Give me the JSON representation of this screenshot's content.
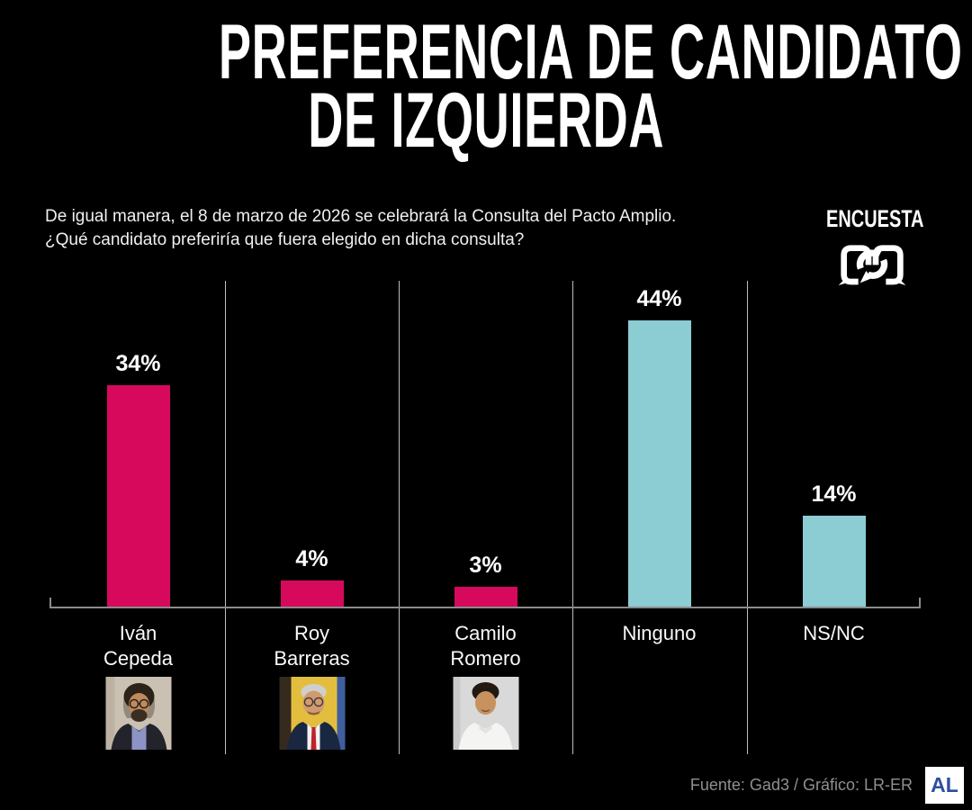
{
  "page": {
    "background": "#000000"
  },
  "header": {
    "title_line1": "PREFERENCIA DE CANDIDATO",
    "title_line2": "DE IZQUIERDA",
    "subtitle_line1": "De igual manera, el 8 de marzo de 2026 se celebrará la Consulta del Pacto Amplio.",
    "subtitle_line2": "¿Qué candidato preferiría que fuera elegido en dicha consulta?",
    "encuesta_label": "ENCUESTA",
    "brand_logo": "rcn-logo"
  },
  "chart_data": {
    "type": "bar",
    "title": "Preferencia de candidato de izquierda",
    "categories": [
      "Iván Cepeda",
      "Roy Barreras",
      "Camilo Romero",
      "Ninguno",
      "NS/NC"
    ],
    "values": [
      34,
      4,
      3,
      44,
      14
    ],
    "unit": "%",
    "ylim": [
      0,
      48
    ],
    "legend": "none",
    "grid": "vertical-column-separators",
    "colors": {
      "candidate_bar": "#D6095D",
      "other_bar": "#8BCDD3",
      "axis": "#8C8C8C",
      "separator": "#BDBDBD"
    },
    "columns": [
      {
        "label_line1": "Iván",
        "label_line2": "Cepeda",
        "value": 34,
        "value_label": "34%",
        "color": "#D6095D",
        "photo": "ivan-cepeda"
      },
      {
        "label_line1": "Roy",
        "label_line2": "Barreras",
        "value": 4,
        "value_label": "4%",
        "color": "#D6095D",
        "photo": "roy-barreras"
      },
      {
        "label_line1": "Camilo",
        "label_line2": "Romero",
        "value": 3,
        "value_label": "3%",
        "color": "#D6095D",
        "photo": "camilo-romero"
      },
      {
        "label_line1": "Ninguno",
        "label_line2": "",
        "value": 44,
        "value_label": "44%",
        "color": "#8BCDD3",
        "photo": null
      },
      {
        "label_line1": "NS/NC",
        "label_line2": "",
        "value": 14,
        "value_label": "14%",
        "color": "#8BCDD3",
        "photo": null
      }
    ]
  },
  "footer": {
    "source": "Fuente: Gad3 / Gráfico: LR-ER",
    "brand": "AL",
    "brand_color": "#2B4F9E"
  }
}
